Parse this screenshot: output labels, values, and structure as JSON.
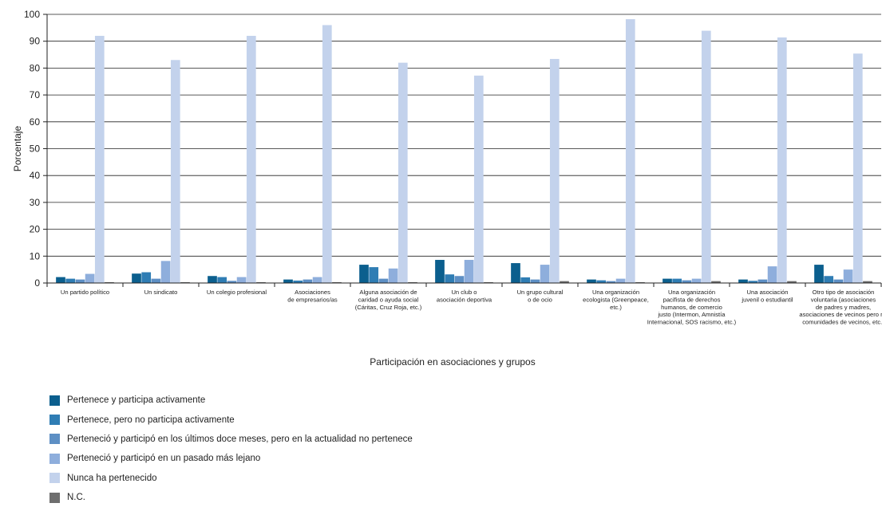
{
  "chart_data": {
    "type": "bar",
    "title": "",
    "xlabel": "Participación en asociaciones y grupos",
    "ylabel": "Porcentaje",
    "ylim": [
      0,
      100
    ],
    "yticks": [
      0,
      10,
      20,
      30,
      40,
      50,
      60,
      70,
      80,
      90,
      100
    ],
    "grid": true,
    "legend_position": "bottom-left",
    "categories": [
      [
        "Un partido político"
      ],
      [
        "Un sindicato"
      ],
      [
        "Un colegio profesional"
      ],
      [
        "Asociaciones",
        "de empresarios/as"
      ],
      [
        "Alguna asociación de",
        "caridad o ayuda social",
        "(Cáritas, Cruz Roja, etc.)"
      ],
      [
        "Un club o",
        "asociación deportiva"
      ],
      [
        "Un grupo cultural",
        "o de ocio"
      ],
      [
        "Una organización",
        "ecologista (Greenpeace,",
        "etc.)"
      ],
      [
        "Una organización",
        "pacifista de derechos",
        "humanos, de comercio",
        "justo (Intermon, Amnistía",
        "Internacional, SOS racismo, etc.)"
      ],
      [
        "Una asociación",
        "juvenil o estudiantil"
      ],
      [
        "Otro tipo de asociación",
        "voluntaria (asociaciones",
        "de padres y madres,",
        "asociaciones de vecinos pero no",
        "comunidades de vecinos, etc.)"
      ]
    ],
    "series": [
      {
        "name": "Pertenece y participa activamente",
        "color": "#0b5f8e",
        "values": [
          2.2,
          3.5,
          2.6,
          1.3,
          6.8,
          8.6,
          7.4,
          1.3,
          1.6,
          1.3,
          6.8
        ]
      },
      {
        "name": "Pertenece, pero no participa activamente",
        "color": "#2f7db4",
        "values": [
          1.6,
          4.0,
          2.2,
          0.9,
          5.9,
          3.2,
          2.1,
          1.0,
          1.6,
          0.8,
          2.6
        ]
      },
      {
        "name": "Perteneció y participó en los últimos doce meses, pero en la actualidad no pertenece",
        "color": "#5d8fc4",
        "values": [
          1.3,
          1.6,
          0.8,
          1.3,
          1.6,
          2.6,
          1.3,
          0.7,
          1.0,
          1.3,
          1.3
        ]
      },
      {
        "name": "Perteneció y participó en un pasado más lejano",
        "color": "#8eaedc",
        "values": [
          3.4,
          8.2,
          2.2,
          2.2,
          5.4,
          8.6,
          6.8,
          1.6,
          1.6,
          6.2,
          5.0
        ]
      },
      {
        "name": "Nunca ha pertenecido",
        "color": "#c3d2ec",
        "values": [
          92.0,
          83.0,
          92.0,
          96.0,
          82.0,
          77.2,
          83.4,
          98.2,
          93.9,
          91.4,
          85.4
        ]
      },
      {
        "name": "N.C.",
        "color": "#6e6e6e",
        "values": [
          0.3,
          0.3,
          0.3,
          0.3,
          0.3,
          0.3,
          0.7,
          0.3,
          0.7,
          0.7,
          0.7
        ]
      }
    ]
  }
}
